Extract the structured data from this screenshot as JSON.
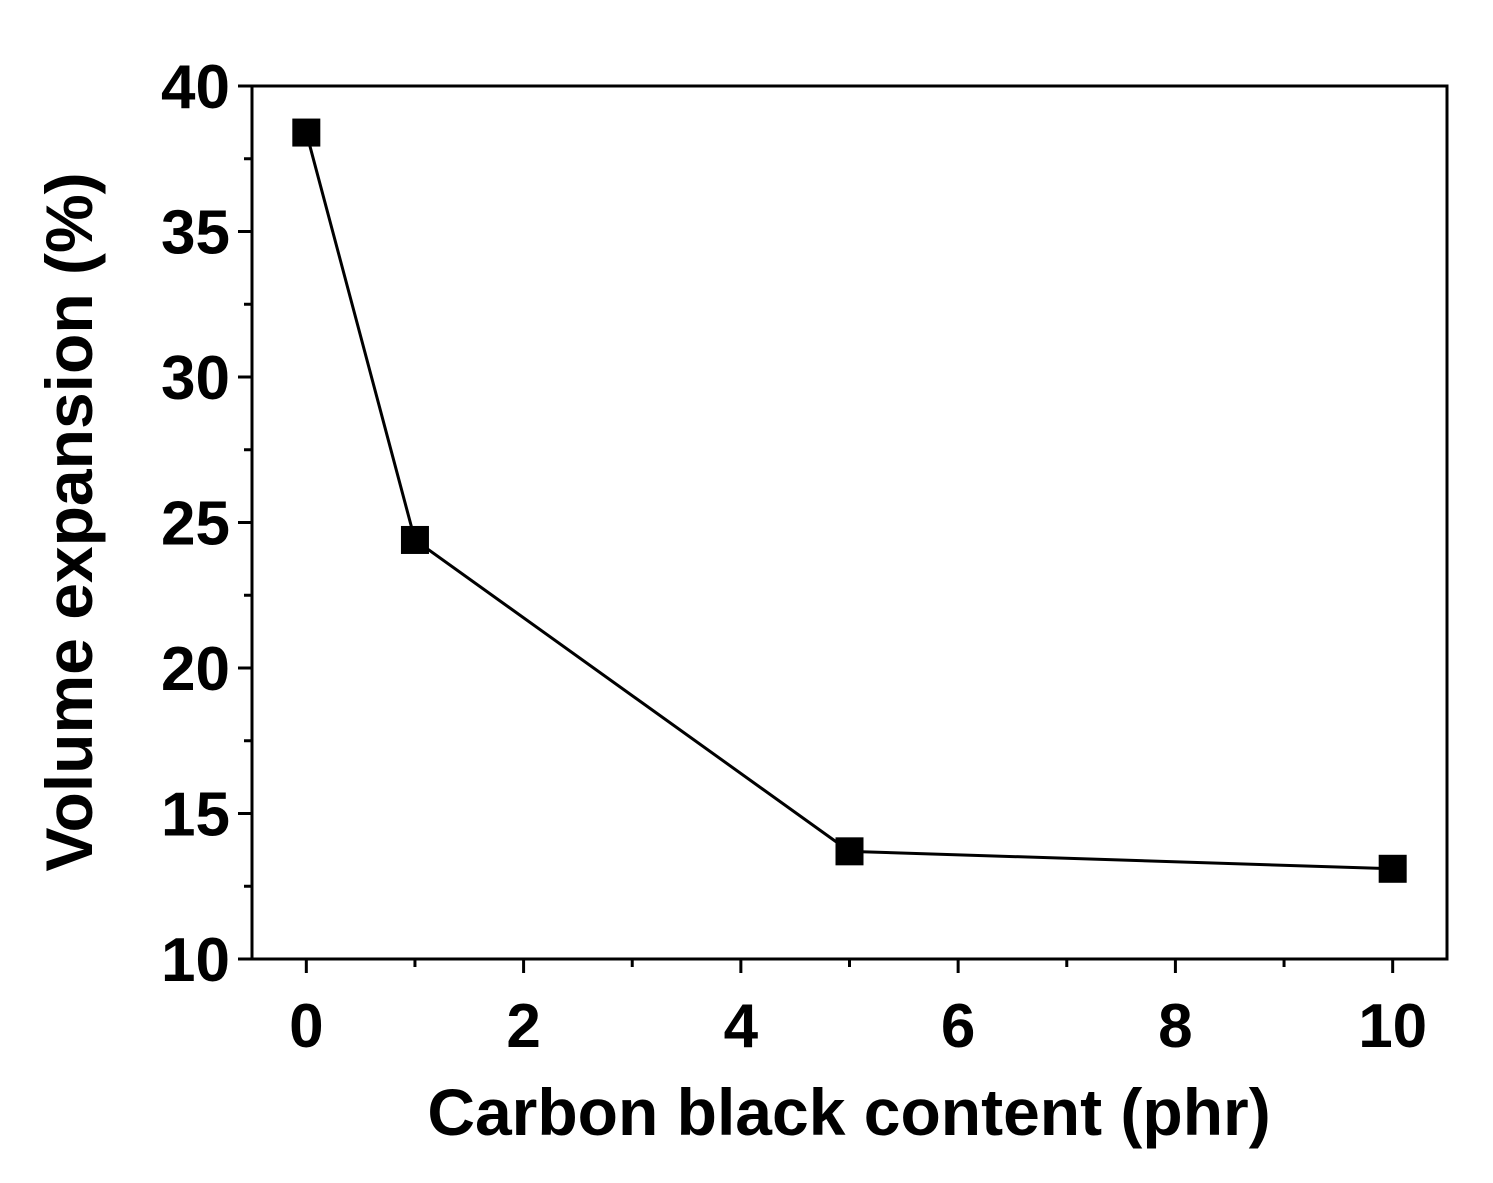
{
  "chart_data": {
    "type": "line",
    "title": "",
    "xlabel": "Carbon black content (phr)",
    "ylabel": "Volume expansion (%)",
    "xlim": [
      -0.5,
      10.5
    ],
    "ylim": [
      10,
      40
    ],
    "xticks": [
      0,
      2,
      4,
      6,
      8,
      10
    ],
    "yticks": [
      10,
      15,
      20,
      25,
      30,
      35,
      40
    ],
    "grid": false,
    "marker": "square",
    "color": "#000000",
    "series": [
      {
        "x": [
          0,
          1,
          5,
          10
        ],
        "y": [
          38.4,
          24.4,
          13.7,
          13.1
        ]
      }
    ]
  }
}
